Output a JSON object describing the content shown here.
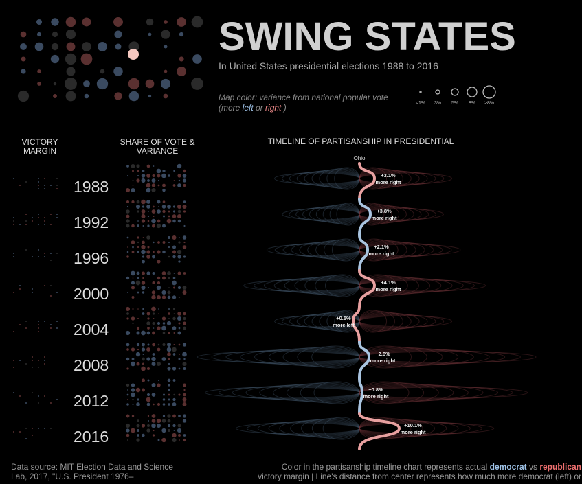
{
  "header": {
    "title": "SWING STATES",
    "subtitle": "In United States presidential elections 1988 to 2016"
  },
  "legend": {
    "note": "Map color: variance from national popular vote",
    "open": "(more ",
    "left": "left",
    "or": " or ",
    "right": "right",
    "close": " )",
    "sizes": [
      "<1%",
      "3%",
      "5%",
      "8%",
      ">8%"
    ]
  },
  "columns": {
    "victory_margin": "VICTORY MARGIN",
    "share": "SHARE OF VOTE & VARIANCE",
    "timeline": "TIMELINE OF PARTISANSHIP IN PRESIDENTIAL"
  },
  "state": "Ohio",
  "years": [
    {
      "year": "1988",
      "shift": "+3.1%",
      "direction": "more right",
      "color": "#e8a0a0"
    },
    {
      "year": "1992",
      "shift": "+3.8%",
      "direction": "more right",
      "color": "#a9c4e0"
    },
    {
      "year": "1996",
      "shift": "+2.1%",
      "direction": "more right",
      "color": "#a9c4e0"
    },
    {
      "year": "2000",
      "shift": "+4.1%",
      "direction": "more right",
      "color": "#e8a0a0"
    },
    {
      "year": "2004",
      "shift": "+0.5%",
      "direction": "more left",
      "color": "#e8a0a0"
    },
    {
      "year": "2008",
      "shift": "+2.6%",
      "direction": "more right",
      "color": "#a9c4e0"
    },
    {
      "year": "2012",
      "shift": "+0.8%",
      "direction": "more right",
      "color": "#a9c4e0"
    },
    {
      "year": "2016",
      "shift": "+10.1%",
      "direction": "more right",
      "color": "#e8a0a0"
    }
  ],
  "footer": {
    "source": "Data source: MIT Election Data and Science Lab, 2017, \"U.S. President 1976–",
    "note_a": "Color in the partisanship timeline chart represents actual ",
    "democrat": "democrat",
    "vs": " vs ",
    "republican": "republican",
    "note_b": " victory margin | Line's distance from center represents how much more democrat (left) or"
  }
}
